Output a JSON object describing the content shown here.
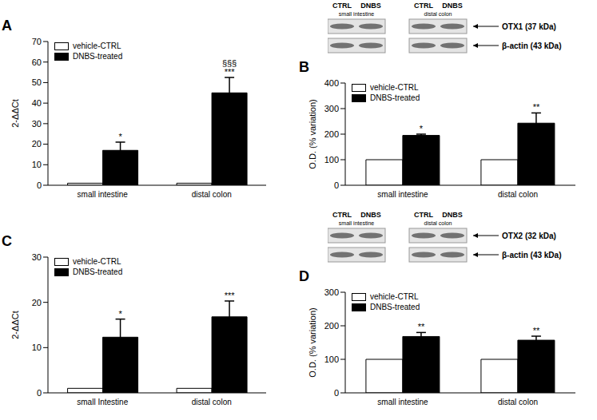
{
  "chart_data": [
    {
      "panel": "A",
      "type": "bar",
      "y_label": "2-ΔΔCt",
      "categories": [
        "small intestine",
        "distal colon"
      ],
      "series": [
        {
          "name": "vehicle-CTRL",
          "color": "#ffffff",
          "values": [
            1,
            1
          ]
        },
        {
          "name": "DNBS-treated",
          "color": "#000000",
          "values": [
            17,
            45
          ],
          "errors": [
            4,
            7.5
          ],
          "significance": [
            [
              "*"
            ],
            [
              "§§§",
              "***"
            ]
          ]
        }
      ],
      "ylim": [
        0,
        70
      ],
      "yticks": [
        0,
        10,
        20,
        30,
        40,
        50,
        60,
        70
      ],
      "legend": "upper left"
    },
    {
      "panel": "B",
      "type": "bar",
      "y_label": "O.D. (% variation)",
      "categories": [
        "small intestine",
        "distal colon"
      ],
      "series": [
        {
          "name": "vehicle-CTRL",
          "color": "#ffffff",
          "values": [
            100,
            100
          ]
        },
        {
          "name": "DNBS-treated",
          "color": "#000000",
          "values": [
            195,
            243
          ],
          "errors": [
            5,
            40
          ],
          "significance": [
            [
              "*"
            ],
            [
              "**"
            ]
          ]
        }
      ],
      "ylim": [
        0,
        400
      ],
      "yticks": [
        0,
        100,
        200,
        300,
        400
      ],
      "legend": "upper left",
      "blot": {
        "lanes": [
          "CTRL",
          "DNBS"
        ],
        "tissues": [
          "small intestine",
          "distal colon"
        ],
        "bands": [
          "OTX1 (37 kDa)",
          "β-actin (43 kDa)"
        ]
      }
    },
    {
      "panel": "C",
      "type": "bar",
      "y_label": "2-ΔΔCt",
      "categories": [
        "small Intestine",
        "distal colon"
      ],
      "series": [
        {
          "name": "vehicle-CTRL",
          "color": "#ffffff",
          "values": [
            1,
            1
          ]
        },
        {
          "name": "DNBS-treated",
          "color": "#000000",
          "values": [
            12.3,
            16.8
          ],
          "errors": [
            4,
            3.5
          ],
          "significance": [
            [
              "*"
            ],
            [
              "***"
            ]
          ]
        }
      ],
      "ylim": [
        0,
        30
      ],
      "yticks": [
        0,
        10,
        20,
        30
      ],
      "legend": "upper left"
    },
    {
      "panel": "D",
      "type": "bar",
      "y_label": "O.D. (% variation)",
      "categories": [
        "small intestine",
        "distal colon"
      ],
      "series": [
        {
          "name": "vehicle-CTRL",
          "color": "#ffffff",
          "values": [
            100,
            100
          ]
        },
        {
          "name": "DNBS-treated",
          "color": "#000000",
          "values": [
            168,
            157
          ],
          "errors": [
            12,
            12
          ],
          "significance": [
            [
              "**"
            ],
            [
              "**"
            ]
          ]
        }
      ],
      "ylim": [
        0,
        300
      ],
      "yticks": [
        0,
        100,
        200,
        300
      ],
      "legend": "upper left",
      "blot": {
        "lanes": [
          "CTRL",
          "DNBS"
        ],
        "tissues": [
          "small intestine",
          "distal colon"
        ],
        "bands": [
          "OTX2 (32 kDa)",
          "β-actin (43 kDa)"
        ]
      }
    }
  ]
}
